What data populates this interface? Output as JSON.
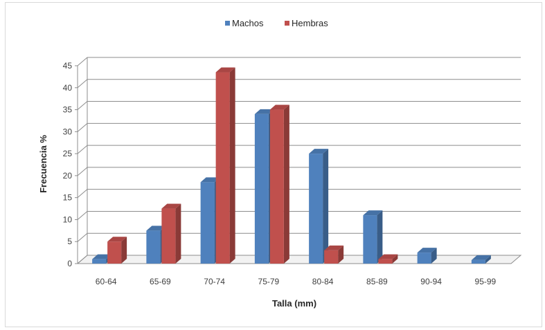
{
  "chart_data": {
    "type": "bar",
    "style": "3d-clustered-column",
    "categories": [
      "60-64",
      "65-69",
      "70-74",
      "75-79",
      "80-84",
      "85-89",
      "90-94",
      "95-99"
    ],
    "series": [
      {
        "name": "Machos",
        "color": "#4f81bd",
        "values": [
          1,
          7.5,
          18.5,
          34,
          25,
          11,
          2.5,
          0.8
        ]
      },
      {
        "name": "Hembras",
        "color": "#c0504d",
        "values": [
          5,
          12.5,
          43.5,
          35,
          3,
          1,
          0,
          0
        ]
      }
    ],
    "xlabel": "Talla (mm)",
    "ylabel": "Frecuencia %",
    "ylim": [
      0,
      45
    ],
    "yticks": [
      0,
      5,
      10,
      15,
      20,
      25,
      30,
      35,
      40,
      45
    ],
    "grid": true,
    "legend": "top-center"
  }
}
